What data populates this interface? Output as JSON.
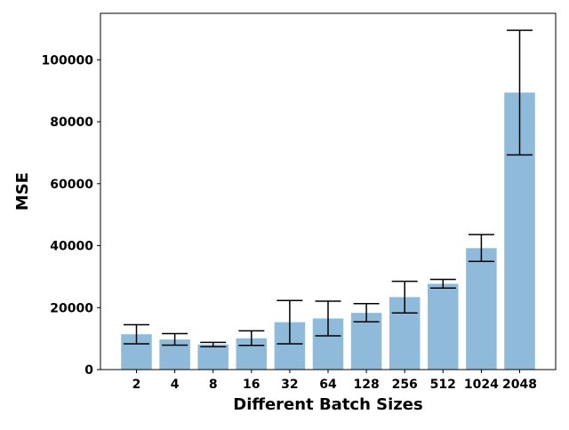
{
  "chart_data": {
    "type": "bar",
    "categories": [
      "2",
      "4",
      "8",
      "16",
      "32",
      "64",
      "128",
      "256",
      "512",
      "1024",
      "2048"
    ],
    "values": [
      11400,
      9700,
      8100,
      10100,
      15300,
      16500,
      18300,
      23400,
      27700,
      39200,
      89400
    ],
    "error_low": [
      8300,
      7900,
      7400,
      7800,
      8300,
      10900,
      15400,
      18300,
      26300,
      34900,
      69300
    ],
    "error_high": [
      14500,
      11600,
      8800,
      12500,
      22300,
      22100,
      21300,
      28500,
      29100,
      43600,
      109500
    ],
    "xlabel": "Different Batch Sizes",
    "ylabel": "MSE",
    "ylim": [
      0,
      115000
    ],
    "yticks": [
      0,
      20000,
      40000,
      60000,
      80000,
      100000
    ],
    "grid": false,
    "colors": {
      "bar": "#8fbad9",
      "error": "#000000",
      "axis": "#000000"
    }
  }
}
